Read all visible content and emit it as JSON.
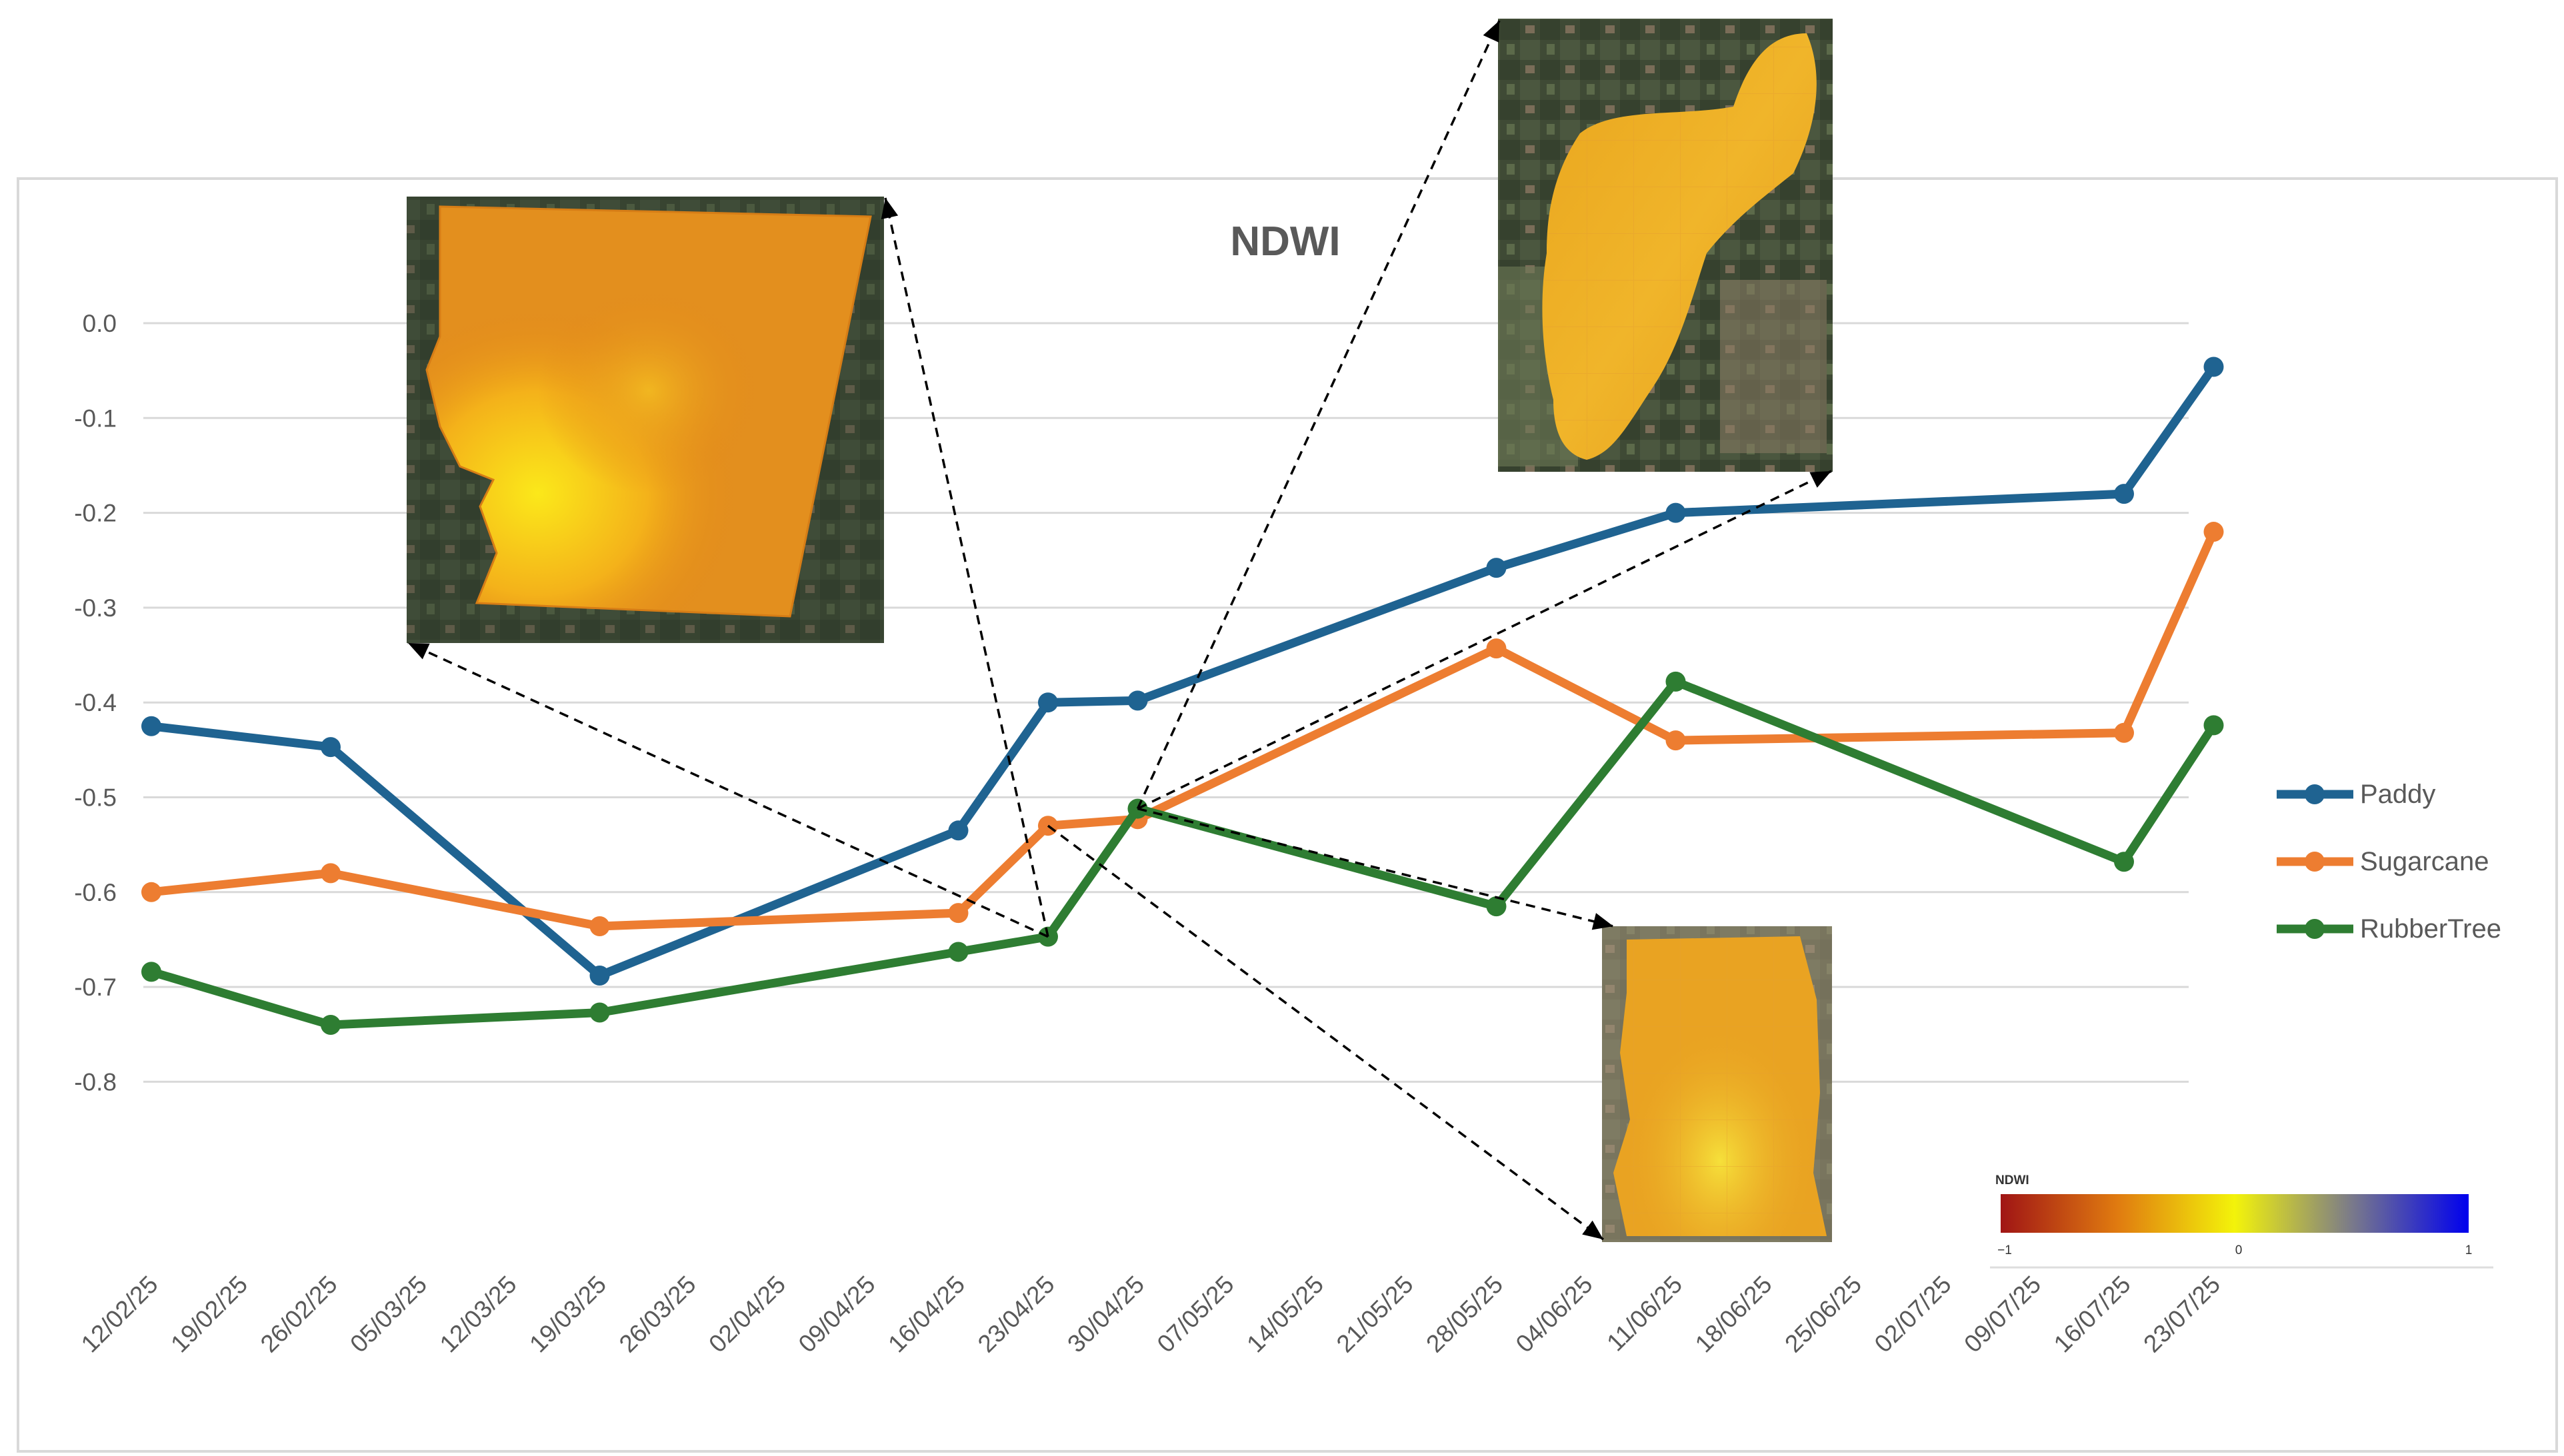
{
  "chart_data": {
    "type": "line",
    "title": "NDWI",
    "xlabel": "",
    "ylabel": "",
    "ylim": [
      -0.8,
      0.0
    ],
    "y_ticks": [
      "0.0",
      "-0.1",
      "-0.2",
      "-0.3",
      "-0.4",
      "-0.5",
      "-0.6",
      "-0.7",
      "-0.8"
    ],
    "y_tick_values": [
      0.0,
      -0.1,
      -0.2,
      -0.3,
      -0.4,
      -0.5,
      -0.6,
      -0.7,
      -0.8
    ],
    "categories": [
      "12/02/25",
      "19/02/25",
      "26/02/25",
      "05/03/25",
      "12/03/25",
      "19/03/25",
      "26/03/25",
      "02/04/25",
      "09/04/25",
      "16/04/25",
      "23/04/25",
      "30/04/25",
      "07/05/25",
      "14/05/25",
      "21/05/25",
      "28/05/25",
      "04/06/25",
      "11/06/25",
      "18/06/25",
      "25/06/25",
      "02/07/25",
      "09/07/25",
      "16/07/25",
      "23/07/25"
    ],
    "grid": true,
    "legend_position": "right",
    "series": [
      {
        "name": "Paddy",
        "color": "#1f6391",
        "points": [
          [
            "12/02/25",
            -0.425
          ],
          [
            "26/02/25",
            -0.447
          ],
          [
            "19/03/25",
            -0.688
          ],
          [
            "16/04/25",
            -0.535
          ],
          [
            "23/04/25",
            -0.4
          ],
          [
            "30/04/25",
            -0.398
          ],
          [
            "28/05/25",
            -0.258
          ],
          [
            "11/06/25",
            -0.2
          ],
          [
            "16/07/25",
            -0.18
          ],
          [
            "23/07/25",
            -0.046
          ]
        ]
      },
      {
        "name": "Sugarcane",
        "color": "#ed7d31",
        "points": [
          [
            "12/02/25",
            -0.6
          ],
          [
            "26/02/25",
            -0.58
          ],
          [
            "19/03/25",
            -0.636
          ],
          [
            "16/04/25",
            -0.622
          ],
          [
            "23/04/25",
            -0.53
          ],
          [
            "30/04/25",
            -0.523
          ],
          [
            "28/05/25",
            -0.343
          ],
          [
            "11/06/25",
            -0.44
          ],
          [
            "16/07/25",
            -0.432
          ],
          [
            "23/07/25",
            -0.22
          ]
        ]
      },
      {
        "name": "RubberTree",
        "color": "#2e7d32",
        "points": [
          [
            "12/02/25",
            -0.684
          ],
          [
            "26/02/25",
            -0.74
          ],
          [
            "19/03/25",
            -0.727
          ],
          [
            "16/04/25",
            -0.663
          ],
          [
            "23/04/25",
            -0.647
          ],
          [
            "30/04/25",
            -0.512
          ],
          [
            "28/05/25",
            -0.615
          ],
          [
            "11/06/25",
            -0.378
          ],
          [
            "16/07/25",
            -0.568
          ],
          [
            "23/07/25",
            -0.424
          ]
        ]
      }
    ],
    "colorbar": {
      "title": "NDWI",
      "min_label": "−1",
      "mid_label": "0",
      "max_label": "1",
      "colors": [
        "#a01515",
        "#e07b10",
        "#f3f30a",
        "#7a7a8a",
        "#0000ee"
      ]
    }
  },
  "insets": [
    {
      "name": "paddy-field-ndwi-map",
      "connects_to": "23/04/25"
    },
    {
      "name": "sugarcane-field-ndwi-map",
      "connects_to": "30/04/25"
    },
    {
      "name": "rubbertree-field-ndwi-map",
      "connects_to": "30/04/25"
    }
  ]
}
